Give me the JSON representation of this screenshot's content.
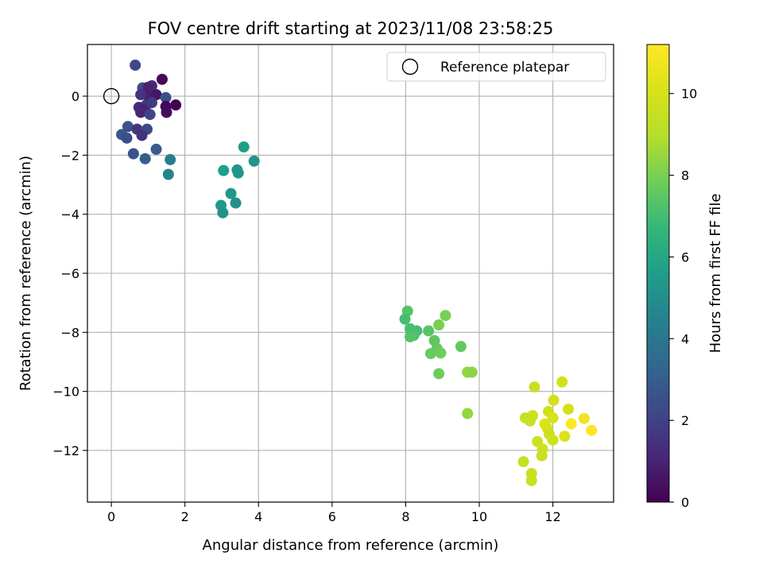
{
  "chart_data": {
    "type": "scatter",
    "title": "FOV centre drift starting at 2023/11/08 23:58:25",
    "xlabel": "Angular distance from reference (arcmin)",
    "ylabel": "Rotation from reference (arcmin)",
    "xlim": [
      -0.65,
      13.65
    ],
    "ylim": [
      -13.75,
      1.75
    ],
    "xticks": [
      "0",
      "2",
      "4",
      "6",
      "8",
      "10",
      "12"
    ],
    "yticks": [
      "0",
      "−2",
      "−4",
      "−6",
      "−8",
      "−10",
      "−12"
    ],
    "grid": true,
    "legend": {
      "position": "upper-right",
      "entries": [
        {
          "label": "Reference platepar",
          "marker": "open-circle"
        }
      ]
    },
    "reference_point": {
      "x": 0,
      "y": 0
    },
    "colorbar": {
      "label": "Hours from first FF file",
      "colormap": "viridis",
      "range": [
        0,
        11.2
      ],
      "ticks": [
        "0",
        "2",
        "4",
        "6",
        "8",
        "10"
      ]
    },
    "series": [
      {
        "points": [
          {
            "x": 0.65,
            "y": 1.05,
            "c": 2.2
          },
          {
            "x": 1.38,
            "y": 0.57,
            "c": 0.2
          },
          {
            "x": 0.85,
            "y": 0.28,
            "c": 2.4
          },
          {
            "x": 1.1,
            "y": 0.35,
            "c": 1.3
          },
          {
            "x": 1.0,
            "y": 0.3,
            "c": 1.0
          },
          {
            "x": 0.95,
            "y": 0.05,
            "c": 0.9
          },
          {
            "x": 0.8,
            "y": 0.05,
            "c": 1.5
          },
          {
            "x": 1.22,
            "y": 0.05,
            "c": 0.6
          },
          {
            "x": 1.48,
            "y": -0.05,
            "c": 2.5
          },
          {
            "x": 1.1,
            "y": -0.22,
            "c": 1.8
          },
          {
            "x": 0.95,
            "y": -0.3,
            "c": 1.6
          },
          {
            "x": 0.75,
            "y": -0.38,
            "c": 1.2
          },
          {
            "x": 1.48,
            "y": -0.35,
            "c": 0.1
          },
          {
            "x": 1.75,
            "y": -0.3,
            "c": 0.0
          },
          {
            "x": 1.5,
            "y": -0.55,
            "c": 0.3
          },
          {
            "x": 0.88,
            "y": -0.5,
            "c": 0.9
          },
          {
            "x": 0.8,
            "y": -0.55,
            "c": 1.1
          },
          {
            "x": 1.05,
            "y": -0.62,
            "c": 2.1
          },
          {
            "x": 0.45,
            "y": -1.03,
            "c": 2.6
          },
          {
            "x": 0.7,
            "y": -1.12,
            "c": 1.6
          },
          {
            "x": 0.97,
            "y": -1.12,
            "c": 2.2
          },
          {
            "x": 0.28,
            "y": -1.3,
            "c": 2.8
          },
          {
            "x": 0.42,
            "y": -1.42,
            "c": 2.4
          },
          {
            "x": 0.83,
            "y": -1.33,
            "c": 1.4
          },
          {
            "x": 0.6,
            "y": -1.95,
            "c": 2.6
          },
          {
            "x": 1.22,
            "y": -1.8,
            "c": 2.9
          },
          {
            "x": 0.92,
            "y": -2.12,
            "c": 3.0
          },
          {
            "x": 1.6,
            "y": -2.15,
            "c": 4.2
          },
          {
            "x": 1.55,
            "y": -2.65,
            "c": 4.6
          },
          {
            "x": 3.6,
            "y": -1.72,
            "c": 5.6
          },
          {
            "x": 3.88,
            "y": -2.2,
            "c": 5.2
          },
          {
            "x": 3.05,
            "y": -2.52,
            "c": 5.6
          },
          {
            "x": 3.42,
            "y": -2.5,
            "c": 5.3
          },
          {
            "x": 3.45,
            "y": -2.6,
            "c": 5.2
          },
          {
            "x": 3.25,
            "y": -3.3,
            "c": 5.3
          },
          {
            "x": 3.38,
            "y": -3.62,
            "c": 5.0
          },
          {
            "x": 2.98,
            "y": -3.7,
            "c": 5.4
          },
          {
            "x": 3.03,
            "y": -3.95,
            "c": 5.2
          },
          {
            "x": 8.05,
            "y": -7.28,
            "c": 7.3
          },
          {
            "x": 7.98,
            "y": -7.55,
            "c": 7.0
          },
          {
            "x": 9.08,
            "y": -7.43,
            "c": 8.0
          },
          {
            "x": 8.12,
            "y": -7.88,
            "c": 7.1
          },
          {
            "x": 8.3,
            "y": -7.95,
            "c": 7.0
          },
          {
            "x": 8.62,
            "y": -7.95,
            "c": 7.4
          },
          {
            "x": 8.9,
            "y": -7.75,
            "c": 8.0
          },
          {
            "x": 8.22,
            "y": -8.1,
            "c": 7.2
          },
          {
            "x": 8.12,
            "y": -8.15,
            "c": 7.3
          },
          {
            "x": 8.78,
            "y": -8.28,
            "c": 7.5
          },
          {
            "x": 8.85,
            "y": -8.55,
            "c": 7.6
          },
          {
            "x": 8.95,
            "y": -8.7,
            "c": 7.8
          },
          {
            "x": 8.68,
            "y": -8.72,
            "c": 7.7
          },
          {
            "x": 9.5,
            "y": -8.48,
            "c": 7.6
          },
          {
            "x": 8.9,
            "y": -9.4,
            "c": 7.8
          },
          {
            "x": 9.68,
            "y": -9.35,
            "c": 8.4
          },
          {
            "x": 9.8,
            "y": -9.35,
            "c": 8.3
          },
          {
            "x": 9.68,
            "y": -10.75,
            "c": 8.4
          },
          {
            "x": 12.25,
            "y": -9.68,
            "c": 9.9
          },
          {
            "x": 11.5,
            "y": -9.85,
            "c": 9.6
          },
          {
            "x": 12.02,
            "y": -10.3,
            "c": 9.9
          },
          {
            "x": 11.88,
            "y": -10.68,
            "c": 9.8
          },
          {
            "x": 12.42,
            "y": -10.6,
            "c": 9.9
          },
          {
            "x": 12.85,
            "y": -10.92,
            "c": 10.8
          },
          {
            "x": 11.25,
            "y": -10.9,
            "c": 9.6
          },
          {
            "x": 11.45,
            "y": -10.82,
            "c": 9.7
          },
          {
            "x": 11.38,
            "y": -11.0,
            "c": 9.5
          },
          {
            "x": 12.0,
            "y": -10.9,
            "c": 10.0
          },
          {
            "x": 11.78,
            "y": -11.1,
            "c": 10.2
          },
          {
            "x": 11.85,
            "y": -11.25,
            "c": 10.0
          },
          {
            "x": 12.5,
            "y": -11.1,
            "c": 11.2
          },
          {
            "x": 13.05,
            "y": -11.32,
            "c": 11.1
          },
          {
            "x": 11.9,
            "y": -11.45,
            "c": 9.8
          },
          {
            "x": 12.32,
            "y": -11.52,
            "c": 10.2
          },
          {
            "x": 12.0,
            "y": -11.65,
            "c": 9.8
          },
          {
            "x": 11.58,
            "y": -11.7,
            "c": 9.7
          },
          {
            "x": 11.72,
            "y": -11.95,
            "c": 9.8
          },
          {
            "x": 11.7,
            "y": -12.18,
            "c": 9.6
          },
          {
            "x": 11.2,
            "y": -12.38,
            "c": 9.5
          },
          {
            "x": 11.42,
            "y": -12.78,
            "c": 9.6
          },
          {
            "x": 11.42,
            "y": -13.02,
            "c": 9.6
          }
        ]
      }
    ]
  }
}
